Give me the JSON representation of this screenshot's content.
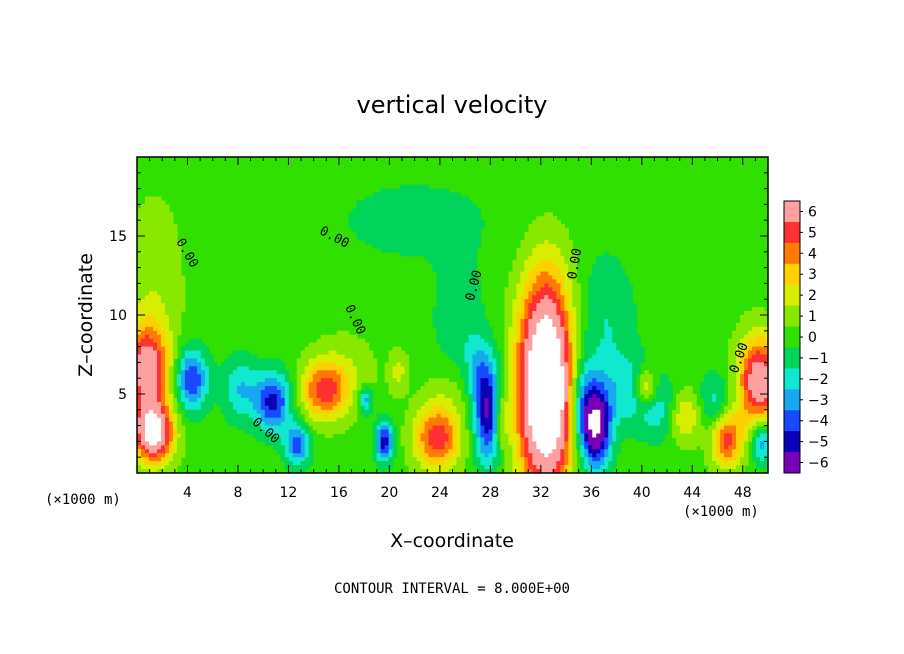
{
  "chart_data": {
    "type": "heatmap",
    "title": "vertical velocity",
    "xlabel": "X–coordinate",
    "ylabel": "Z–coordinate",
    "x_unit": "(×1000 m)",
    "y_unit": "(×1000 m)",
    "x_ticks": [
      4,
      8,
      12,
      16,
      20,
      24,
      28,
      32,
      36,
      40,
      44,
      48
    ],
    "x_tick_labels": [
      "4",
      "8",
      "12",
      "16",
      "20",
      "24",
      "28",
      "32",
      "36",
      "40",
      "44",
      "48"
    ],
    "y_ticks": [
      5,
      10,
      15
    ],
    "y_tick_labels": [
      "5",
      "10",
      "15"
    ],
    "xlim": [
      0,
      50
    ],
    "ylim": [
      0,
      20
    ],
    "colorbar": {
      "levels": [
        6,
        5,
        4,
        3,
        2,
        1,
        0,
        -1,
        -2,
        -3,
        -4,
        -5,
        -6
      ],
      "labels": [
        "6",
        "5",
        "4",
        "3",
        "2",
        "1",
        "0",
        "−1",
        "−2",
        "−3",
        "−4",
        "−5",
        "−6"
      ],
      "colors": [
        "#ffa0a0",
        "#ff3030",
        "#ff7a00",
        "#ffd000",
        "#d8ee00",
        "#88e800",
        "#30e000",
        "#00d45a",
        "#10e8d0",
        "#18a8f0",
        "#1848ff",
        "#0a00b8",
        "#7a00b8"
      ]
    },
    "contour_labels": [
      {
        "text": "0.00",
        "x": 3.7,
        "y": 13.8,
        "angle": 60
      },
      {
        "text": "0.00",
        "x": 15.5,
        "y": 14.7,
        "angle": 28
      },
      {
        "text": "0.00",
        "x": 17.0,
        "y": 9.6,
        "angle": 65
      },
      {
        "text": "0.00",
        "x": 10.0,
        "y": 2.5,
        "angle": 42
      },
      {
        "text": "0.00",
        "x": 27.0,
        "y": 11.8,
        "angle": -75
      },
      {
        "text": "0.00",
        "x": 35.0,
        "y": 13.2,
        "angle": -80
      },
      {
        "text": "0.00",
        "x": 48.0,
        "y": 7.2,
        "angle": -70
      }
    ],
    "cells_info": "contour field of vertical velocity",
    "features": [
      {
        "x": 0.8,
        "z": 6.5,
        "value": 6.5,
        "sx": 1.2,
        "sz": 2.0
      },
      {
        "x": 1.3,
        "z": 2.5,
        "value": 8.0,
        "sx": 1.1,
        "sz": 1.3
      },
      {
        "x": 4.3,
        "z": 5.9,
        "value": -4.6,
        "sx": 0.9,
        "sz": 1.4
      },
      {
        "x": 8.2,
        "z": 5.3,
        "value": -2.5,
        "sx": 1.0,
        "sz": 1.4
      },
      {
        "x": 10.8,
        "z": 4.5,
        "value": -5.0,
        "sx": 1.0,
        "sz": 1.3
      },
      {
        "x": 12.7,
        "z": 1.8,
        "value": -4.2,
        "sx": 0.7,
        "sz": 0.9
      },
      {
        "x": 14.8,
        "z": 5.2,
        "value": 4.6,
        "sx": 1.3,
        "sz": 1.3
      },
      {
        "x": 16.5,
        "z": 6.3,
        "value": 1.2,
        "sx": 1.8,
        "sz": 1.8
      },
      {
        "x": 18.1,
        "z": 4.6,
        "value": -3.4,
        "sx": 0.4,
        "sz": 0.6
      },
      {
        "x": 19.6,
        "z": 2.0,
        "value": -5.2,
        "sx": 0.5,
        "sz": 0.9
      },
      {
        "x": 20.7,
        "z": 6.4,
        "value": 1.8,
        "sx": 0.5,
        "sz": 0.9
      },
      {
        "x": 23.8,
        "z": 2.2,
        "value": 5.2,
        "sx": 1.3,
        "sz": 1.4
      },
      {
        "x": 24.8,
        "z": 5.2,
        "value": 1.0,
        "sx": 1.5,
        "sz": 1.5
      },
      {
        "x": 28.0,
        "z": 3.8,
        "value": -6.4,
        "sx": 0.9,
        "sz": 2.2
      },
      {
        "x": 28.8,
        "z": 3.5,
        "value": 4.0,
        "sx": 0.5,
        "sz": 1.6
      },
      {
        "x": 27.0,
        "z": 6.5,
        "value": -1.8,
        "sx": 0.7,
        "sz": 1.4
      },
      {
        "x": 32.4,
        "z": 4.8,
        "value": 10.5,
        "sx": 1.6,
        "sz": 4.2
      },
      {
        "x": 32.4,
        "z": 10.5,
        "value": 2.2,
        "sx": 1.4,
        "sz": 3.2
      },
      {
        "x": 35.2,
        "z": 4.3,
        "value": -3.6,
        "sx": 0.7,
        "sz": 2.3
      },
      {
        "x": 36.4,
        "z": 3.0,
        "value": -7.5,
        "sx": 0.8,
        "sz": 1.9
      },
      {
        "x": 37.0,
        "z": 9.5,
        "value": -1.6,
        "sx": 1.7,
        "sz": 3.0
      },
      {
        "x": 38.8,
        "z": 5.2,
        "value": -2.0,
        "sx": 1.2,
        "sz": 1.6
      },
      {
        "x": 40.3,
        "z": 5.4,
        "value": 3.4,
        "sx": 0.6,
        "sz": 0.8
      },
      {
        "x": 41.5,
        "z": 4.0,
        "value": -2.2,
        "sx": 1.2,
        "sz": 1.4
      },
      {
        "x": 43.4,
        "z": 3.6,
        "value": 3.0,
        "sx": 1.0,
        "sz": 1.2
      },
      {
        "x": 45.8,
        "z": 4.2,
        "value": -2.4,
        "sx": 1.0,
        "sz": 1.4
      },
      {
        "x": 46.7,
        "z": 2.2,
        "value": 5.2,
        "sx": 0.9,
        "sz": 1.3
      },
      {
        "x": 49.3,
        "z": 5.8,
        "value": 6.8,
        "sx": 1.2,
        "sz": 2.0
      },
      {
        "x": 49.5,
        "z": 2.0,
        "value": -3.8,
        "sx": 0.6,
        "sz": 1.0
      },
      {
        "x": 1.4,
        "z": 12.0,
        "value": 1.2,
        "sx": 1.6,
        "sz": 4.0
      },
      {
        "x": 25.5,
        "z": 9.2,
        "value": -1.4,
        "sx": 1.4,
        "sz": 2.6
      },
      {
        "x": 22.0,
        "z": 16.0,
        "value": -0.8,
        "sx": 6.0,
        "sz": 2.5
      }
    ]
  },
  "footer": {
    "x_unit_left": "(×1000 m)",
    "x_unit_right": "(×1000 m)",
    "contour_interval": "CONTOUR INTERVAL = 8.000E+00"
  }
}
